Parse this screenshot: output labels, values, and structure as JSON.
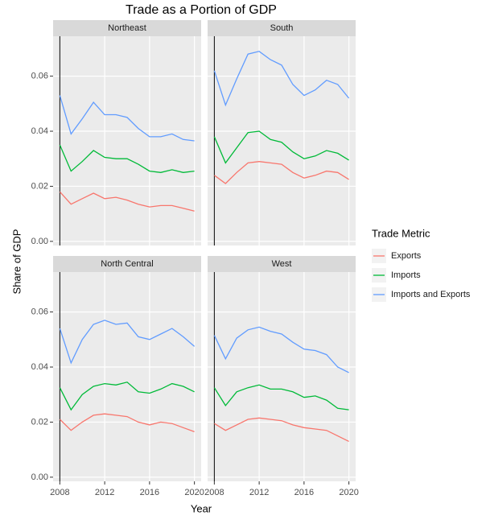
{
  "figure": {
    "title": "Trade as a Portion of GDP",
    "x_label": "Year",
    "y_label": "Share of GDP",
    "legend_title": "Trade Metric"
  },
  "chart_data": [
    {
      "type": "line",
      "title": "Northeast",
      "x": [
        2008,
        2009,
        2010,
        2011,
        2012,
        2013,
        2014,
        2015,
        2016,
        2017,
        2018,
        2019,
        2020
      ],
      "xlim": [
        2007.4,
        2020.6
      ],
      "xticks": [
        2008,
        2012,
        2016,
        2020
      ],
      "ylim": [
        -0.0015,
        0.0745
      ],
      "yticks": [
        {
          "value": 0,
          "label": "0.00"
        },
        0.02,
        0.04,
        0.06
      ],
      "grid": true,
      "vline": 2008,
      "series": [
        {
          "name": "Exports",
          "color": "#F8766D",
          "values": [
            0.018,
            0.0135,
            0.0155,
            0.0175,
            0.0155,
            0.016,
            0.015,
            0.0135,
            0.0125,
            0.013,
            0.013,
            0.012,
            0.011
          ]
        },
        {
          "name": "Imports",
          "color": "#00BA38",
          "values": [
            0.035,
            0.0255,
            0.029,
            0.033,
            0.0305,
            0.03,
            0.03,
            0.028,
            0.0255,
            0.025,
            0.026,
            0.025,
            0.0255
          ]
        },
        {
          "name": "Imports and Exports",
          "color": "#619CFF",
          "values": [
            0.053,
            0.039,
            0.0445,
            0.0505,
            0.046,
            0.046,
            0.045,
            0.041,
            0.038,
            0.038,
            0.039,
            0.037,
            0.0365
          ]
        }
      ]
    },
    {
      "type": "line",
      "title": "South",
      "x": [
        2008,
        2009,
        2010,
        2011,
        2012,
        2013,
        2014,
        2015,
        2016,
        2017,
        2018,
        2019,
        2020
      ],
      "xlim": [
        2007.4,
        2020.6
      ],
      "xticks": [
        2008,
        2012,
        2016,
        2020
      ],
      "ylim": [
        -0.0015,
        0.0745
      ],
      "yticks": [
        {
          "value": 0,
          "label": "0.00"
        },
        0.02,
        0.04,
        0.06
      ],
      "grid": true,
      "vline": 2008,
      "series": [
        {
          "name": "Exports",
          "color": "#F8766D",
          "values": [
            0.024,
            0.021,
            0.025,
            0.0285,
            0.029,
            0.0285,
            0.028,
            0.025,
            0.023,
            0.024,
            0.0255,
            0.025,
            0.0225
          ]
        },
        {
          "name": "Imports",
          "color": "#00BA38",
          "values": [
            0.038,
            0.0285,
            0.034,
            0.0395,
            0.04,
            0.037,
            0.036,
            0.0325,
            0.03,
            0.031,
            0.033,
            0.032,
            0.0295
          ]
        },
        {
          "name": "Imports and Exports",
          "color": "#619CFF",
          "values": [
            0.062,
            0.0495,
            0.059,
            0.068,
            0.069,
            0.066,
            0.064,
            0.057,
            0.053,
            0.055,
            0.0585,
            0.057,
            0.052
          ]
        }
      ]
    },
    {
      "type": "line",
      "title": "North Central",
      "x": [
        2008,
        2009,
        2010,
        2011,
        2012,
        2013,
        2014,
        2015,
        2016,
        2017,
        2018,
        2019,
        2020
      ],
      "xlim": [
        2007.4,
        2020.6
      ],
      "xticks": [
        2008,
        2012,
        2016,
        2020
      ],
      "ylim": [
        -0.0015,
        0.0745
      ],
      "yticks": [
        {
          "value": 0,
          "label": "0.00"
        },
        0.02,
        0.04,
        0.06
      ],
      "grid": true,
      "vline": 2008,
      "series": [
        {
          "name": "Exports",
          "color": "#F8766D",
          "values": [
            0.021,
            0.017,
            0.02,
            0.0225,
            0.023,
            0.0225,
            0.022,
            0.02,
            0.019,
            0.02,
            0.0195,
            0.018,
            0.0165
          ]
        },
        {
          "name": "Imports",
          "color": "#00BA38",
          "values": [
            0.0325,
            0.0245,
            0.03,
            0.033,
            0.034,
            0.0335,
            0.0345,
            0.031,
            0.0305,
            0.032,
            0.034,
            0.033,
            0.031
          ]
        },
        {
          "name": "Imports and Exports",
          "color": "#619CFF",
          "values": [
            0.054,
            0.0415,
            0.05,
            0.0555,
            0.057,
            0.0555,
            0.056,
            0.051,
            0.05,
            0.052,
            0.054,
            0.051,
            0.0475
          ]
        }
      ]
    },
    {
      "type": "line",
      "title": "West",
      "x": [
        2008,
        2009,
        2010,
        2011,
        2012,
        2013,
        2014,
        2015,
        2016,
        2017,
        2018,
        2019,
        2020
      ],
      "xlim": [
        2007.4,
        2020.6
      ],
      "xticks": [
        2008,
        2012,
        2016,
        2020
      ],
      "ylim": [
        -0.0015,
        0.0745
      ],
      "yticks": [
        {
          "value": 0,
          "label": "0.00"
        },
        0.02,
        0.04,
        0.06
      ],
      "grid": true,
      "vline": 2008,
      "series": [
        {
          "name": "Exports",
          "color": "#F8766D",
          "values": [
            0.0195,
            0.017,
            0.019,
            0.021,
            0.0215,
            0.021,
            0.0205,
            0.019,
            0.018,
            0.0175,
            0.017,
            0.015,
            0.013
          ]
        },
        {
          "name": "Imports",
          "color": "#00BA38",
          "values": [
            0.0325,
            0.026,
            0.031,
            0.0325,
            0.0335,
            0.032,
            0.032,
            0.031,
            0.029,
            0.0295,
            0.028,
            0.025,
            0.0245
          ]
        },
        {
          "name": "Imports and Exports",
          "color": "#619CFF",
          "values": [
            0.0515,
            0.043,
            0.0505,
            0.0535,
            0.0545,
            0.053,
            0.052,
            0.049,
            0.0465,
            0.046,
            0.0445,
            0.04,
            0.038
          ]
        }
      ]
    }
  ]
}
